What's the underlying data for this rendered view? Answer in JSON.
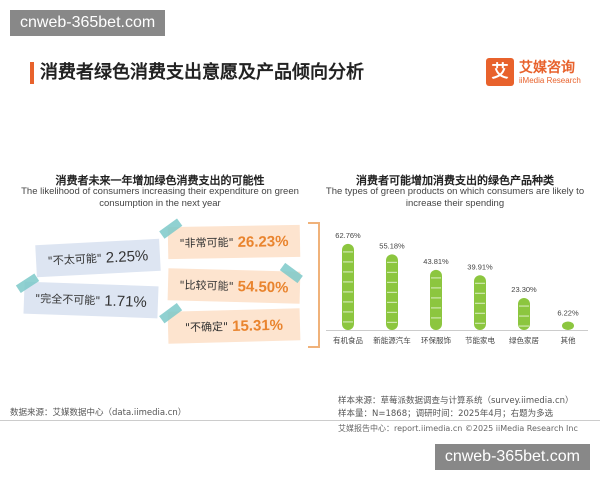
{
  "watermark": "cnweb-365bet.com",
  "page_title": "消费者绿色消费支出意愿及产品倾向分析",
  "logo": {
    "cn": "艾媒咨询",
    "en": "iiMedia Research",
    "mark": "艾"
  },
  "left": {
    "title_cn": "消费者未来一年增加绿色消费支出的可能性",
    "title_en": "The likelihood of consumers increasing their expenditure on green consumption in the next year",
    "items": [
      {
        "label": "\"非常可能\"",
        "value": "26.23%"
      },
      {
        "label": "\"不太可能\"",
        "value": "2.25%"
      },
      {
        "label": "\"比较可能\"",
        "value": "54.50%"
      },
      {
        "label": "\"完全不可能\"",
        "value": "1.71%"
      },
      {
        "label": "\"不确定\"",
        "value": "15.31%"
      }
    ]
  },
  "right": {
    "title_cn": "消费者可能增加消费支出的绿色产品种类",
    "title_en": "The types of green products on which consumers are likely to increase their spending"
  },
  "chart_data": {
    "type": "bar",
    "title": "消费者可能增加消费支出的绿色产品种类",
    "subtitle": "The types of green products on which consumers are likely to increase their spending",
    "categories": [
      "有机食品",
      "新能源汽车",
      "环保服饰",
      "节能家电",
      "绿色家居",
      "其他"
    ],
    "values": [
      62.76,
      55.18,
      43.81,
      39.91,
      23.3,
      6.22
    ],
    "value_labels": [
      "62.76%",
      "55.18%",
      "43.81%",
      "39.91%",
      "23.30%",
      "6.22%"
    ],
    "unit": "%",
    "ylim": [
      0,
      70
    ],
    "grid": false,
    "bar_color": "#8cc63f"
  },
  "source_left": "数据来源：艾媒数据中心（data.iimedia.cn）",
  "sample_source": "样本来源：草莓派数据调查与计算系统（survey.iimedia.cn）",
  "sample_size": "样本量：N=1868；调研时间：2025年4月；右题为多选",
  "footer": "艾媒报告中心：report.iimedia.cn     ©2025  iiMedia Research  Inc"
}
